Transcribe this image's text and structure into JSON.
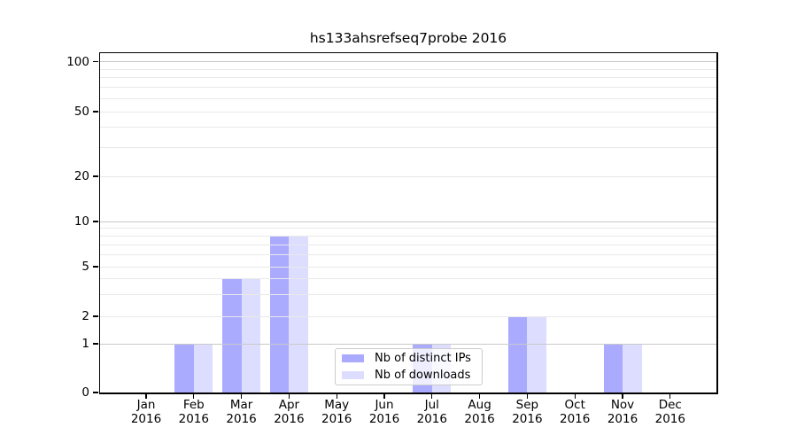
{
  "title": "hs133ahsrefseq7probe 2016",
  "colors": {
    "distinct_ips": "#aaaaff",
    "downloads": "#ddddff",
    "grid_minor": "#e9e9e9",
    "grid_major": "#c9c9c9",
    "axis": "#000000",
    "text": "#000000",
    "legend_border": "#cccccc"
  },
  "x_axis": {
    "months": [
      "Jan",
      "Feb",
      "Mar",
      "Apr",
      "May",
      "Jun",
      "Jul",
      "Aug",
      "Sep",
      "Oct",
      "Nov",
      "Dec"
    ],
    "year": "2016"
  },
  "y_axis": {
    "tick_labels": [
      "0",
      "1",
      "2",
      "5",
      "10",
      "20",
      "50",
      "100"
    ]
  },
  "legend": {
    "items": [
      {
        "label": "Nb of distinct IPs",
        "color_key": "distinct_ips"
      },
      {
        "label": "Nb of downloads",
        "color_key": "downloads"
      }
    ]
  },
  "chart_data": {
    "type": "bar",
    "title": "hs133ahsrefseq7probe 2016",
    "categories": [
      "Jan 2016",
      "Feb 2016",
      "Mar 2016",
      "Apr 2016",
      "May 2016",
      "Jun 2016",
      "Jul 2016",
      "Aug 2016",
      "Sep 2016",
      "Oct 2016",
      "Nov 2016",
      "Dec 2016"
    ],
    "series": [
      {
        "name": "Nb of distinct IPs",
        "color_key": "distinct_ips",
        "values": [
          0,
          1,
          4,
          8,
          0,
          0,
          1,
          0,
          2,
          0,
          1,
          0
        ]
      },
      {
        "name": "Nb of downloads",
        "color_key": "downloads",
        "values": [
          0,
          1,
          4,
          8,
          0,
          0,
          1,
          0,
          2,
          0,
          1,
          0
        ]
      }
    ],
    "yscale": "log-with-zero",
    "y_ticks": [
      0,
      1,
      2,
      5,
      10,
      20,
      50,
      100
    ],
    "y_minor_gridlines": [
      2,
      3,
      4,
      5,
      6,
      7,
      8,
      9,
      20,
      30,
      40,
      50,
      60,
      70,
      80,
      90
    ],
    "y_major_gridlines": [
      1,
      10,
      100
    ],
    "ylim": [
      0,
      113
    ],
    "grid": "horizontal",
    "legend_position": "inside-bottom-center"
  }
}
